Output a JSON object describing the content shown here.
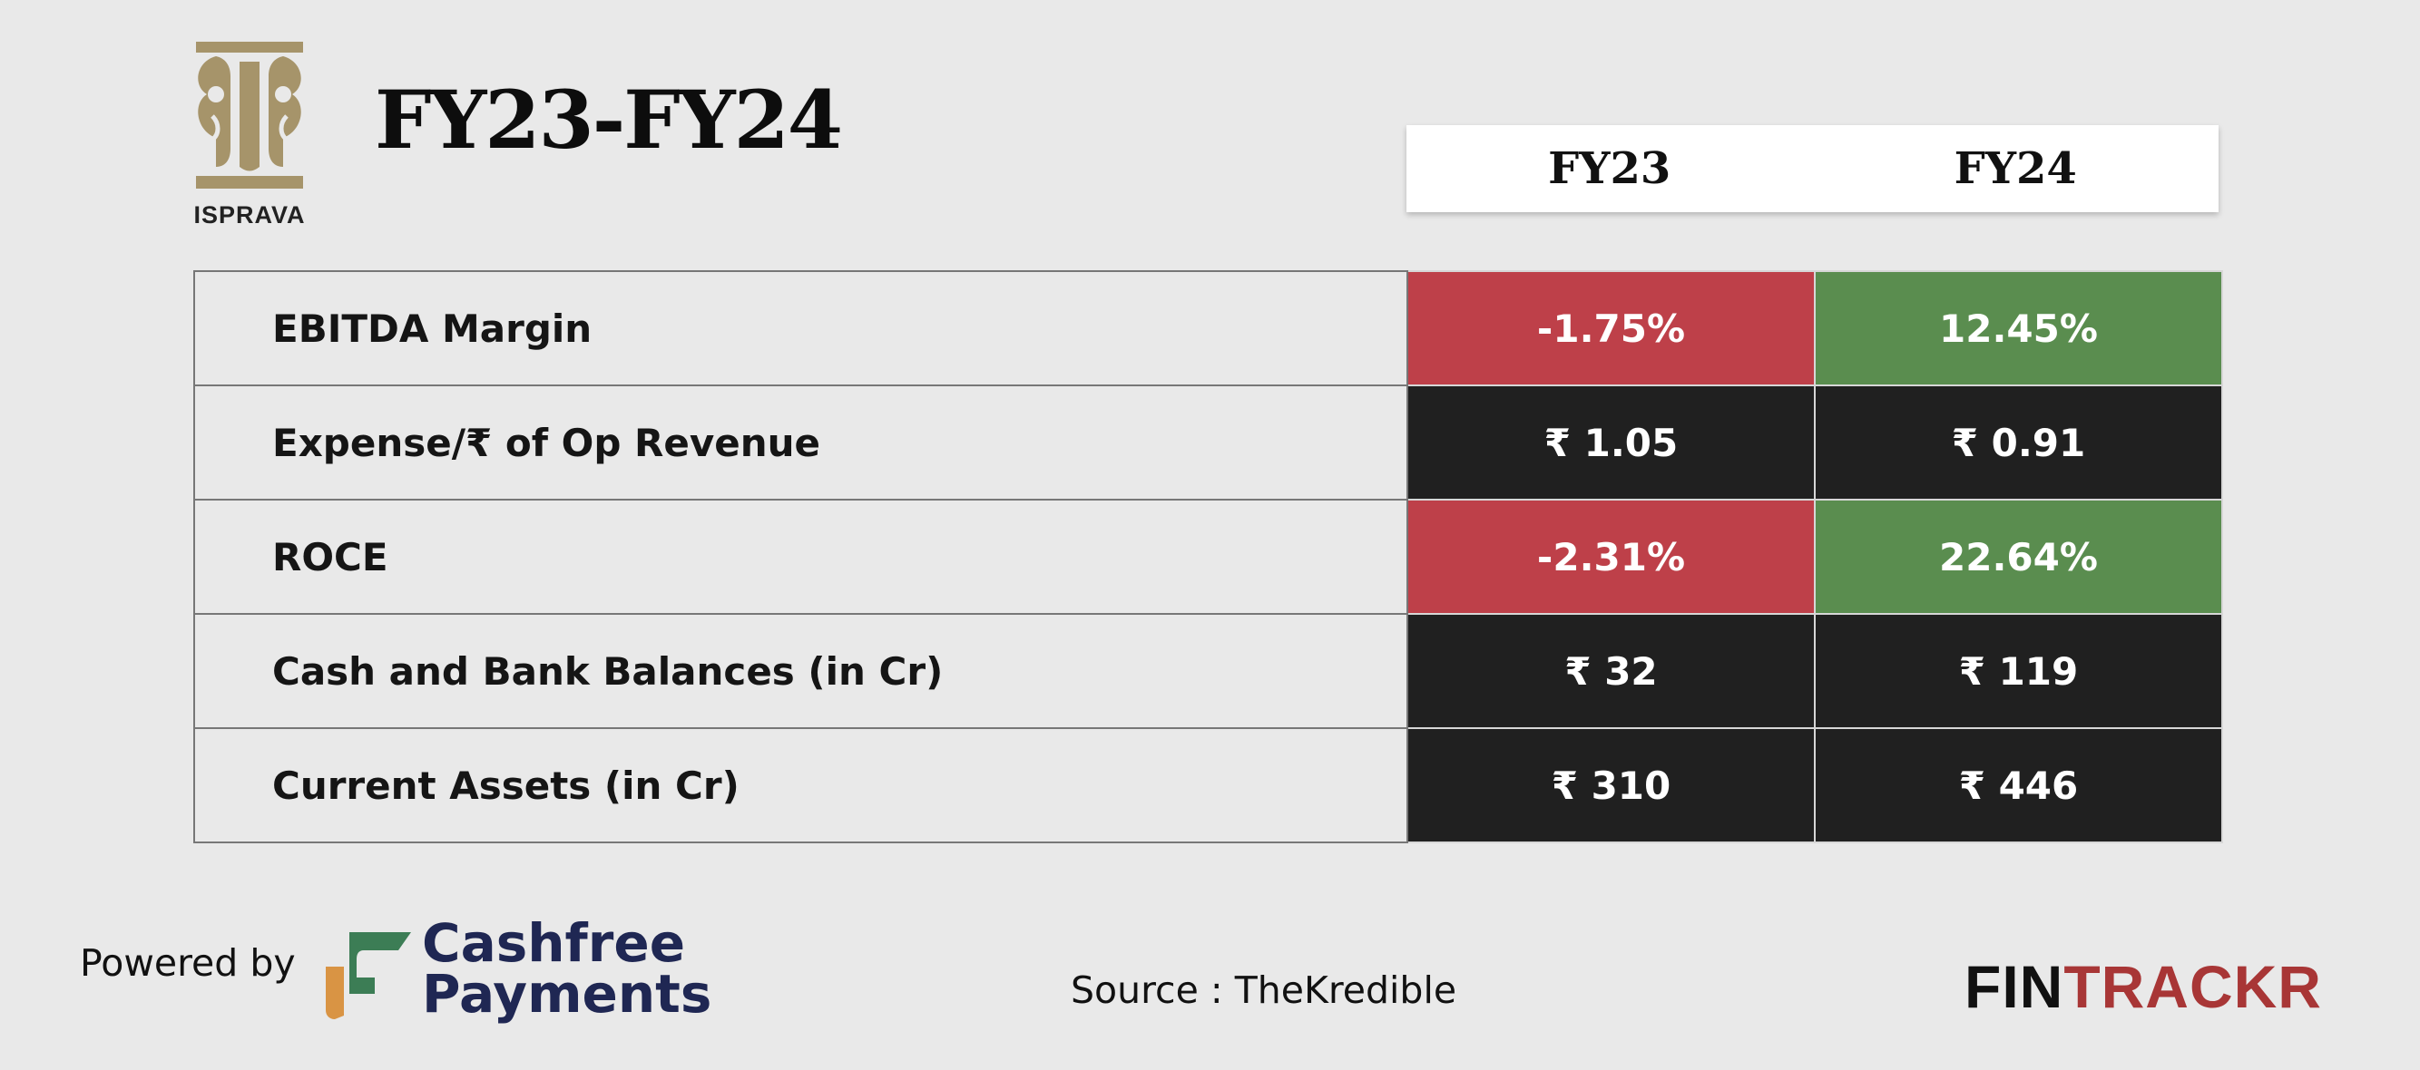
{
  "brand": {
    "name": "ISPRAVA"
  },
  "title": "FY23-FY24",
  "columns": [
    "FY23",
    "FY24"
  ],
  "rows": [
    {
      "label": "EBITDA Margin",
      "fy23": "-1.75%",
      "fy24": "12.45%",
      "fy23_status": "negative",
      "fy24_status": "positive"
    },
    {
      "label": "Expense/₹ of Op Revenue",
      "fy23": "₹ 1.05",
      "fy24": "₹ 0.91",
      "fy23_status": "neutral",
      "fy24_status": "neutral"
    },
    {
      "label": "ROCE",
      "fy23": "-2.31%",
      "fy24": "22.64%",
      "fy23_status": "negative",
      "fy24_status": "positive"
    },
    {
      "label": "Cash and Bank Balances (in Cr)",
      "fy23": "₹ 32",
      "fy24": "₹ 119",
      "fy23_status": "neutral",
      "fy24_status": "neutral"
    },
    {
      "label": "Current Assets (in Cr)",
      "fy23": "₹ 310",
      "fy24": "₹ 446",
      "fy23_status": "neutral",
      "fy24_status": "neutral"
    }
  ],
  "colors": {
    "negative": "#be4049",
    "positive": "#5a8d4f",
    "neutral": "#202020",
    "logo_gold": "#a6946a",
    "cashfree_navy": "#1f2753",
    "fintrackr_red": "#a83636"
  },
  "footer": {
    "powered_by": "Powered by",
    "sponsor_line1": "Cashfree",
    "sponsor_line2": "Payments",
    "source": "Source : TheKredible",
    "fintrackr_part1": "FIN",
    "fintrackr_part2": "TRACKR"
  }
}
